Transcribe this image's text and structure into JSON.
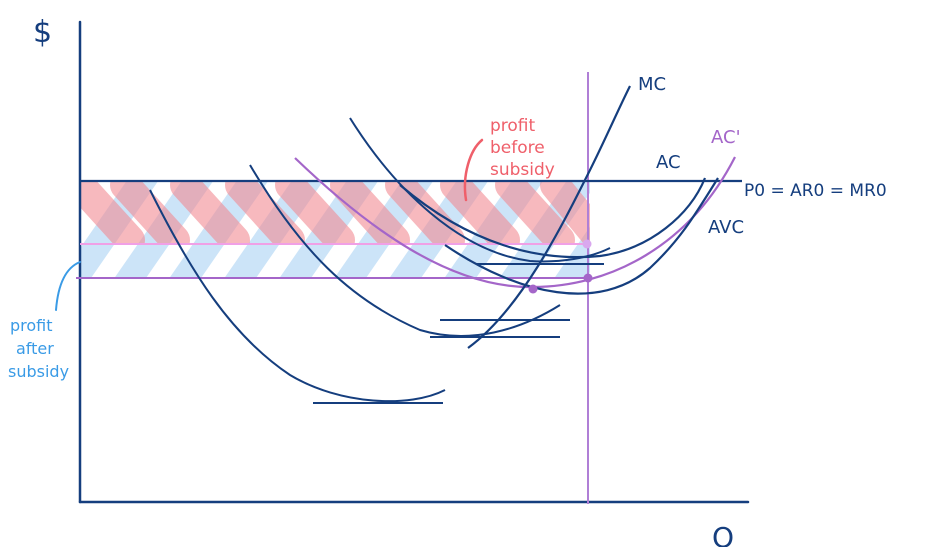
{
  "axes": {
    "y_label": "$",
    "x_label": "Q"
  },
  "curves": {
    "mc": "MC",
    "ac": "AC",
    "ac_prime": "AC'",
    "avc": "AVC"
  },
  "price_line_label": "P0 = AR0 = MR0",
  "annotations": {
    "profit_before": [
      "profit",
      "before",
      "subsidy"
    ],
    "profit_after": [
      "profit",
      "after",
      "subsidy"
    ]
  },
  "colors": {
    "ink": "#153e7e",
    "purple": "#b07fd6",
    "pink": "#f5a6c8",
    "red": "#ef5f6a",
    "blue_label": "#3a9be6",
    "red_hatch": "#f7aab0",
    "blue_hatch": "#bcdcf6"
  }
}
